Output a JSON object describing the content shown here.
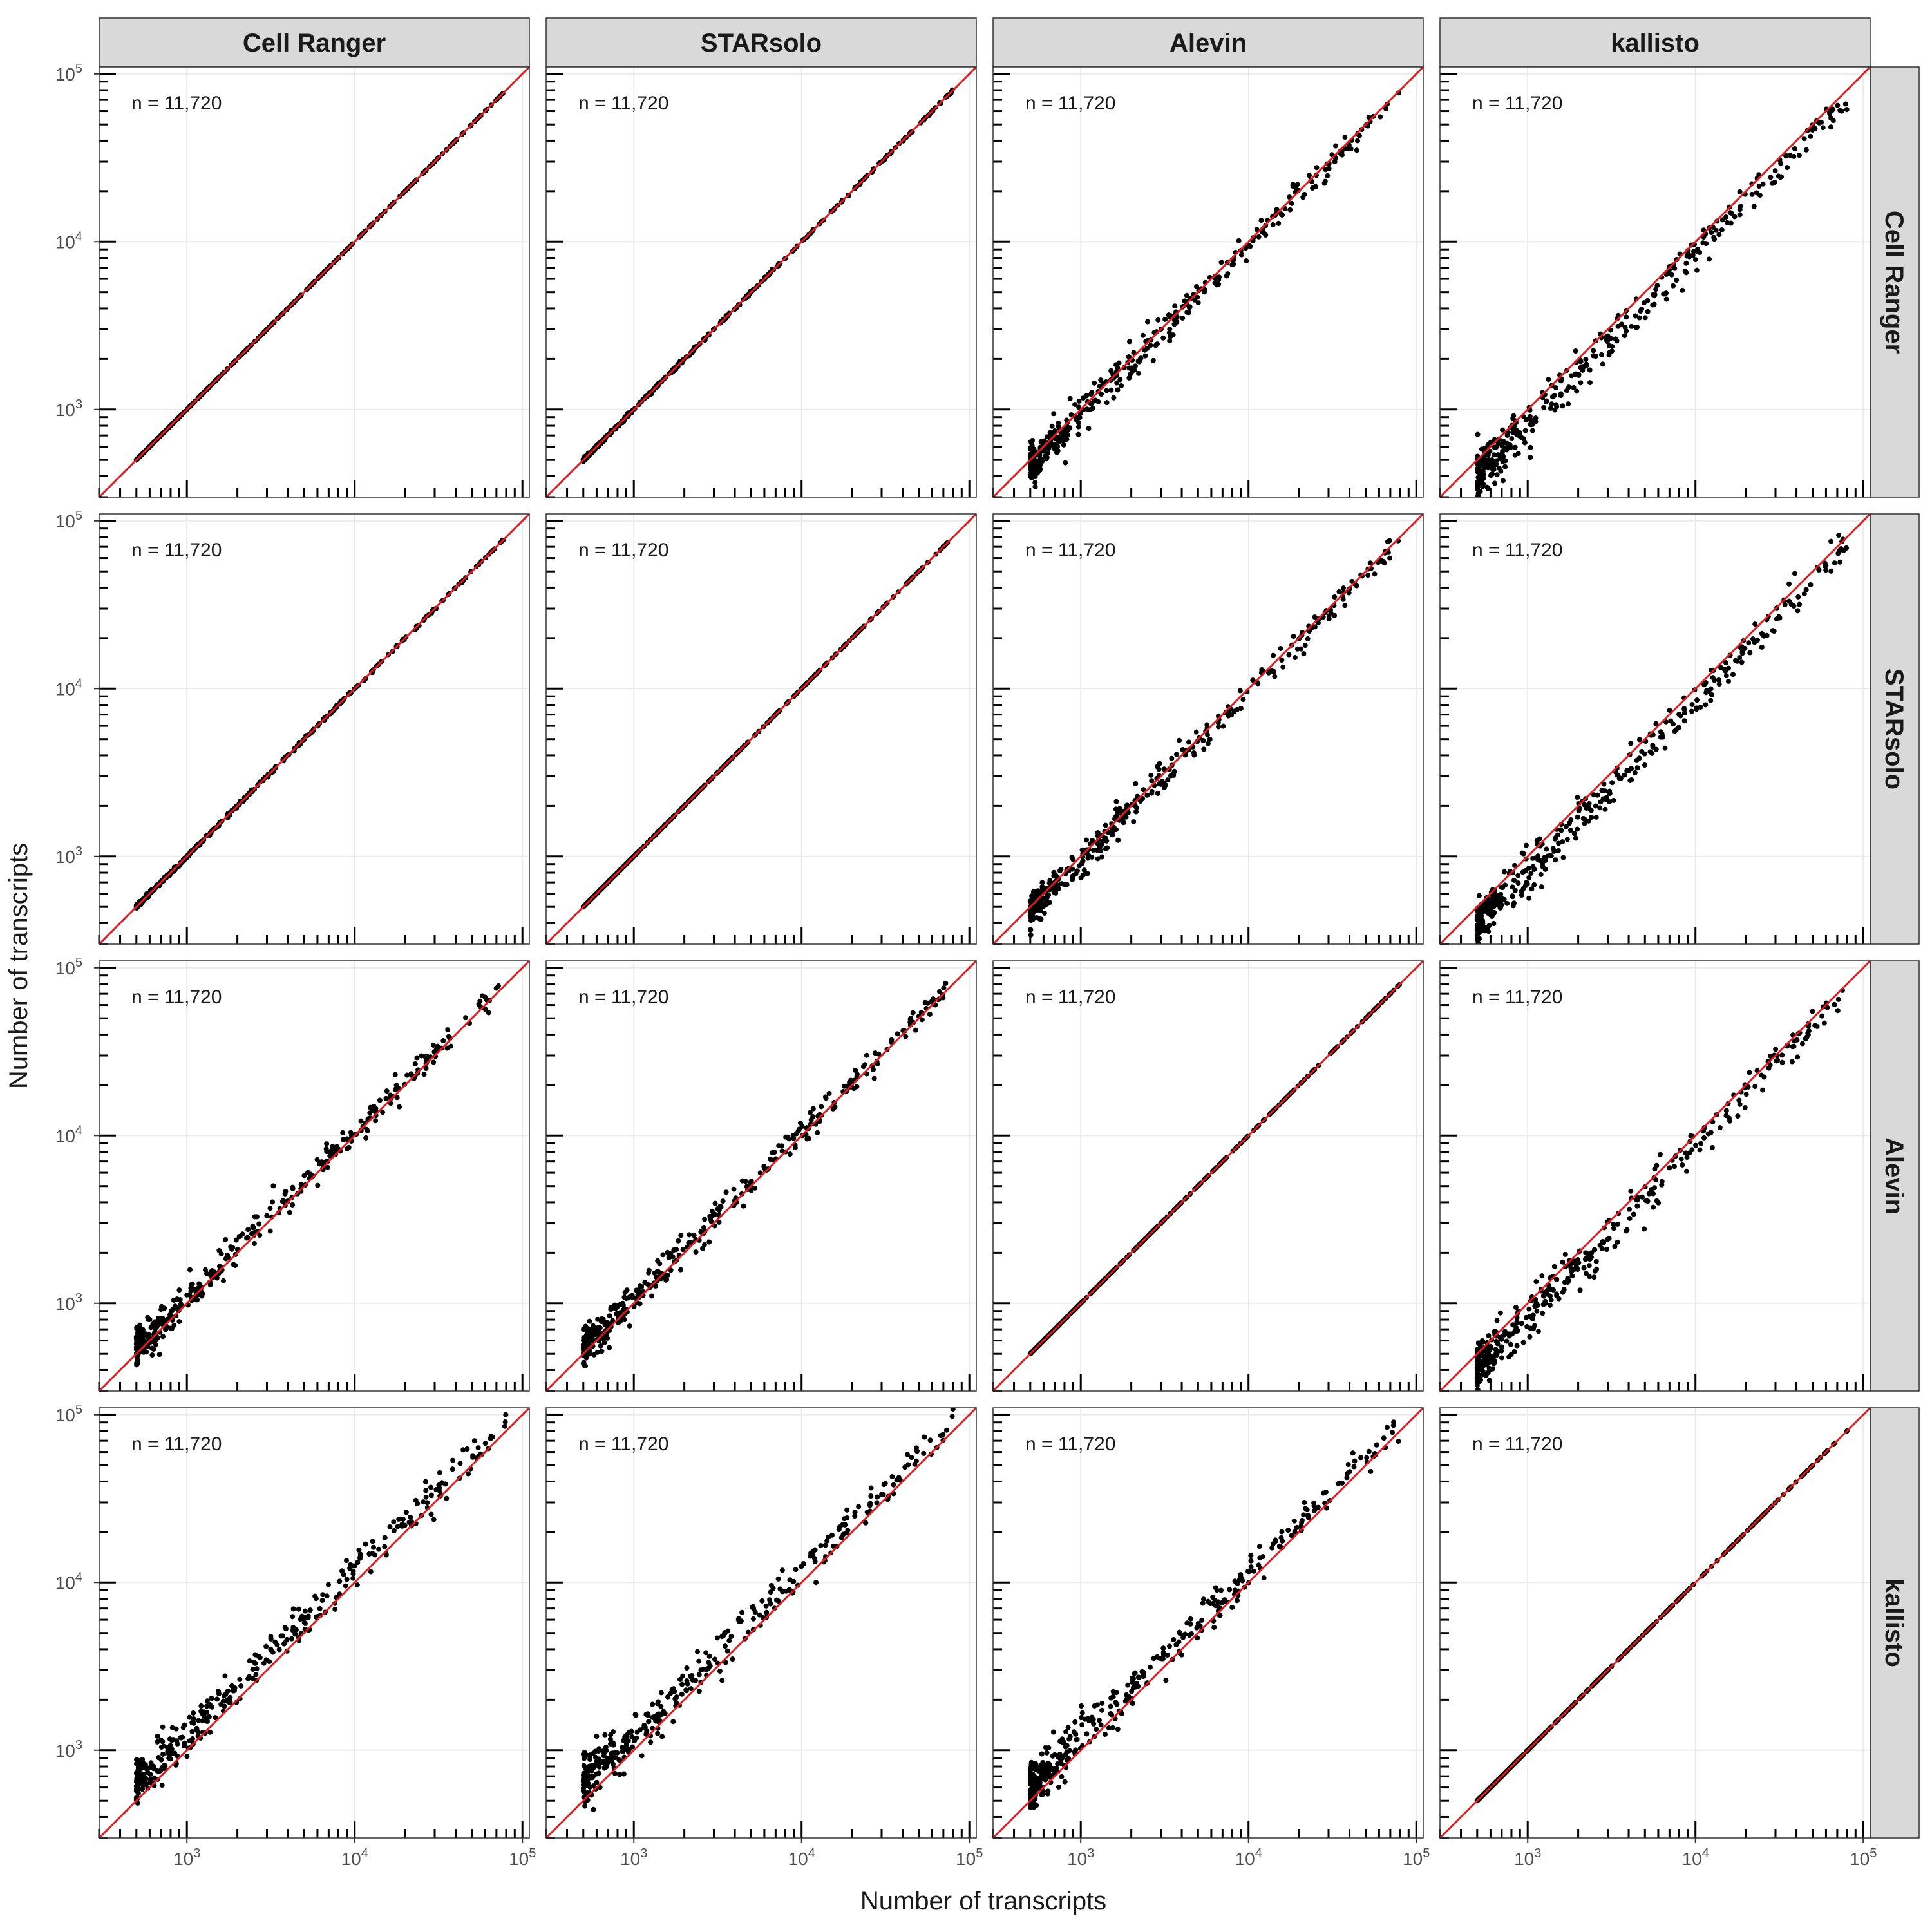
{
  "chart_data": {
    "type": "scatter",
    "layout": "4x4 facet grid",
    "methods": [
      "Cell Ranger",
      "STARsolo",
      "Alevin",
      "kallisto"
    ],
    "column_facets": [
      "Cell Ranger",
      "STARsolo",
      "Alevin",
      "kallisto"
    ],
    "row_facets": [
      "Cell Ranger",
      "STARsolo",
      "Alevin",
      "kallisto"
    ],
    "xlabel": "Number of transcripts",
    "ylabel": "Number of transcripts",
    "x_scale": "log10",
    "y_scale": "log10",
    "xlim": [
      300,
      110000
    ],
    "ylim": [
      300,
      110000
    ],
    "major_ticks": [
      1000,
      10000,
      100000
    ],
    "tick_labels": [
      {
        "base": "10",
        "exp": "3"
      },
      {
        "base": "10",
        "exp": "4"
      },
      {
        "base": "10",
        "exp": "5"
      }
    ],
    "annotation": "n = 11,720",
    "n_points": 11720,
    "reference_line": {
      "type": "identity y = x",
      "color": "#e41a1c"
    },
    "point_color": "#000000",
    "grid": true,
    "rug_ticks": true,
    "panels": [
      {
        "row": "Cell Ranger",
        "col": "Cell Ranger",
        "n": "n = 11,720",
        "offset_log10": 0.0,
        "spread_log10": 0.0
      },
      {
        "row": "Cell Ranger",
        "col": "STARsolo",
        "n": "n = 11,720",
        "offset_log10": 0.0,
        "spread_log10": 0.003
      },
      {
        "row": "Cell Ranger",
        "col": "Alevin",
        "n": "n = 11,720",
        "offset_log10": -0.02,
        "spread_log10": 0.03
      },
      {
        "row": "Cell Ranger",
        "col": "kallisto",
        "n": "n = 11,720",
        "offset_log10": -0.07,
        "spread_log10": 0.04
      },
      {
        "row": "STARsolo",
        "col": "Cell Ranger",
        "n": "n = 11,720",
        "offset_log10": 0.0,
        "spread_log10": 0.003
      },
      {
        "row": "STARsolo",
        "col": "STARsolo",
        "n": "n = 11,720",
        "offset_log10": 0.0,
        "spread_log10": 0.0
      },
      {
        "row": "STARsolo",
        "col": "Alevin",
        "n": "n = 11,720",
        "offset_log10": -0.02,
        "spread_log10": 0.03
      },
      {
        "row": "STARsolo",
        "col": "kallisto",
        "n": "n = 11,720",
        "offset_log10": -0.07,
        "spread_log10": 0.04
      },
      {
        "row": "Alevin",
        "col": "Cell Ranger",
        "n": "n = 11,720",
        "offset_log10": 0.02,
        "spread_log10": 0.03
      },
      {
        "row": "Alevin",
        "col": "STARsolo",
        "n": "n = 11,720",
        "offset_log10": 0.02,
        "spread_log10": 0.03
      },
      {
        "row": "Alevin",
        "col": "Alevin",
        "n": "n = 11,720",
        "offset_log10": 0.0,
        "spread_log10": 0.0
      },
      {
        "row": "Alevin",
        "col": "kallisto",
        "n": "n = 11,720",
        "offset_log10": -0.06,
        "spread_log10": 0.04
      },
      {
        "row": "kallisto",
        "col": "Cell Ranger",
        "n": "n = 11,720",
        "offset_log10": 0.07,
        "spread_log10": 0.04
      },
      {
        "row": "kallisto",
        "col": "STARsolo",
        "n": "n = 11,720",
        "offset_log10": 0.07,
        "spread_log10": 0.04
      },
      {
        "row": "kallisto",
        "col": "Alevin",
        "n": "n = 11,720",
        "offset_log10": 0.06,
        "spread_log10": 0.04
      },
      {
        "row": "kallisto",
        "col": "kallisto",
        "n": "n = 11,720",
        "offset_log10": 0.0,
        "spread_log10": 0.0
      }
    ]
  },
  "colors": {
    "strip_fill": "#d9d9d9",
    "grid": "#ebebeb",
    "panel_border": "#333333",
    "points": "#000000",
    "identity_line": "#e41a1c"
  }
}
